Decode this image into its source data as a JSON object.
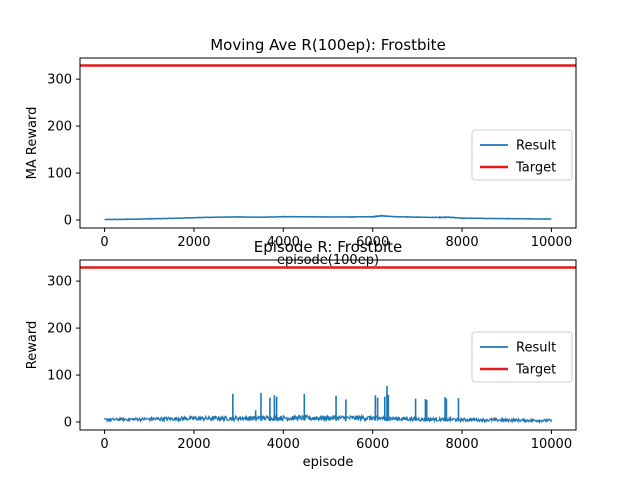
{
  "colors": {
    "result": "#1f77b4",
    "target": "#e41a1c",
    "axis": "#000000",
    "legend_border": "#cccccc"
  },
  "chart_data": [
    {
      "type": "line",
      "title": "Moving Ave R(100ep): Frostbite",
      "xlabel": "episode(100ep)",
      "ylabel": "MA Reward",
      "xlim": [
        -550,
        10550
      ],
      "ylim": [
        -17,
        345
      ],
      "xticks": [
        0,
        2000,
        4000,
        6000,
        8000,
        10000
      ],
      "yticks": [
        0,
        100,
        200,
        300
      ],
      "grid": false,
      "legend": {
        "placement": "center-right",
        "entries": [
          "Result",
          "Target"
        ]
      },
      "target": 329,
      "series": [
        {
          "name": "Result",
          "x": [
            0,
            500,
            1000,
            1500,
            2000,
            2500,
            3000,
            3500,
            4000,
            4500,
            5000,
            5500,
            6000,
            6200,
            6500,
            7000,
            7500,
            7700,
            8000,
            8500,
            9000,
            9500,
            10000
          ],
          "y": [
            1,
            1.5,
            2.5,
            3.5,
            5,
            6,
            6.5,
            6,
            7,
            7,
            6.5,
            6.5,
            7,
            9,
            7,
            6,
            5.5,
            6,
            4,
            3.5,
            3,
            2.5,
            2
          ]
        },
        {
          "name": "Target",
          "x": [
            -550,
            10550
          ],
          "y": [
            329,
            329
          ]
        }
      ]
    },
    {
      "type": "line",
      "title": "Episode R: Frostbite",
      "xlabel": "episode",
      "ylabel": "Reward",
      "xlim": [
        -550,
        10550
      ],
      "ylim": [
        -17,
        345
      ],
      "xticks": [
        0,
        2000,
        4000,
        6000,
        8000,
        10000
      ],
      "yticks": [
        0,
        100,
        200,
        300
      ],
      "grid": false,
      "legend": {
        "placement": "center-right",
        "entries": [
          "Result",
          "Target"
        ]
      },
      "target": 329,
      "series": [
        {
          "name": "Result",
          "baseline_band": [
            [
              0,
              2,
              8
            ],
            [
              2000,
              3,
              12
            ],
            [
              4000,
              3,
              14
            ],
            [
              6000,
              3,
              14
            ],
            [
              7000,
              2,
              10
            ],
            [
              8500,
              1,
              8
            ],
            [
              10000,
              0,
              6
            ]
          ],
          "spikes": [
            [
              2870,
              60
            ],
            [
              3380,
              25
            ],
            [
              3500,
              62
            ],
            [
              3700,
              52
            ],
            [
              3800,
              57
            ],
            [
              3850,
              54
            ],
            [
              4470,
              60
            ],
            [
              5180,
              56
            ],
            [
              5400,
              48
            ],
            [
              6060,
              57
            ],
            [
              6110,
              52
            ],
            [
              6270,
              54
            ],
            [
              6320,
              77
            ],
            [
              6350,
              58
            ],
            [
              6960,
              50
            ],
            [
              7180,
              49
            ],
            [
              7210,
              47
            ],
            [
              7620,
              53
            ],
            [
              7650,
              50
            ],
            [
              7920,
              51
            ]
          ]
        },
        {
          "name": "Target",
          "x": [
            -550,
            10550
          ],
          "y": [
            329,
            329
          ]
        }
      ]
    }
  ]
}
